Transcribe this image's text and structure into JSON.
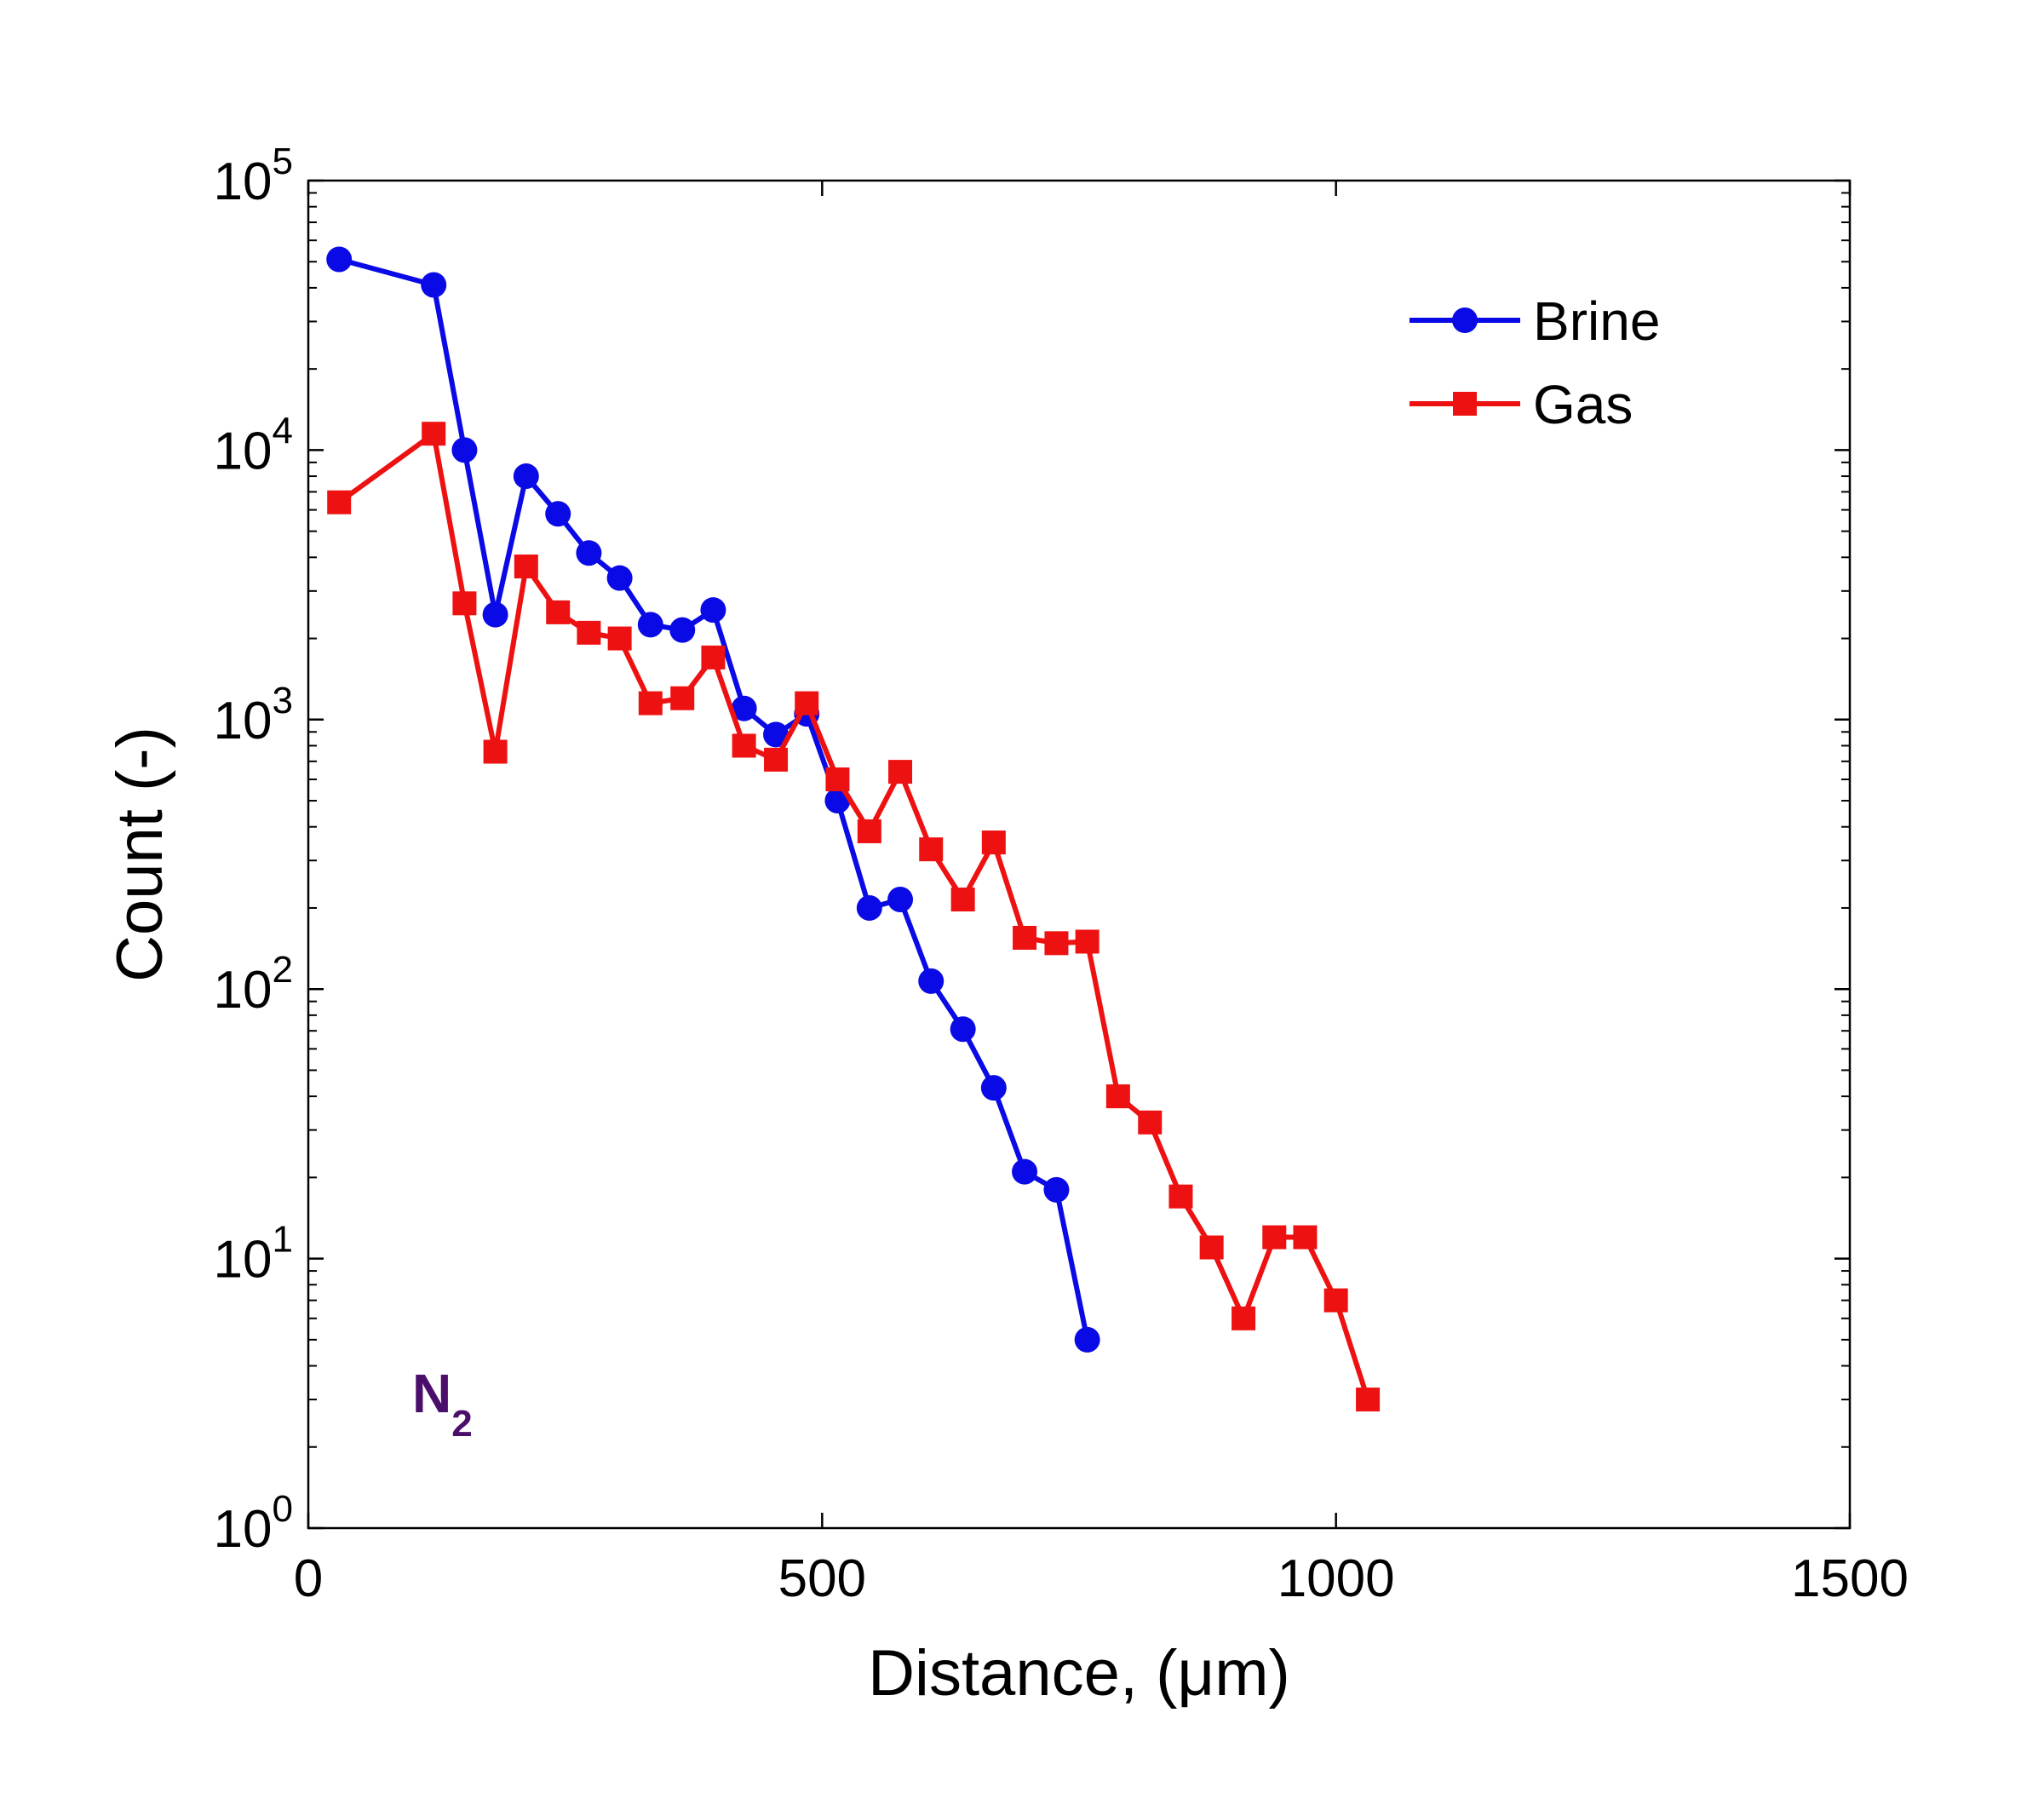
{
  "chart_data": {
    "type": "line",
    "title": "",
    "xlabel": "Distance, (μm)",
    "ylabel": "Count (-)",
    "xlim": [
      0,
      1500
    ],
    "ylim": [
      1,
      100000
    ],
    "yscale": "log",
    "x_ticks": [
      0,
      500,
      1000,
      1500
    ],
    "x_tick_labels": [
      "0",
      "500",
      "1000",
      "1500"
    ],
    "y_ticks": [
      1,
      10,
      100,
      1000,
      10000,
      100000
    ],
    "y_tick_labels": [
      {
        "base": "10",
        "exp": "0"
      },
      {
        "base": "10",
        "exp": "1"
      },
      {
        "base": "10",
        "exp": "2"
      },
      {
        "base": "10",
        "exp": "3"
      },
      {
        "base": "10",
        "exp": "4"
      },
      {
        "base": "10",
        "exp": "5"
      }
    ],
    "grid": false,
    "legend_position": "top-right",
    "annotation": {
      "text": "N",
      "subscript": "2",
      "color": "#4b0f6b"
    },
    "series": [
      {
        "name": "Brine",
        "color": "#0a0ae6",
        "marker": "circle",
        "points": [
          [
            30,
            51000
          ],
          [
            122,
            41000
          ],
          [
            152,
            10000
          ],
          [
            182,
            2450
          ],
          [
            212,
            8000
          ],
          [
            243,
            5800
          ],
          [
            273,
            4150
          ],
          [
            303,
            3350
          ],
          [
            333,
            2250
          ],
          [
            364,
            2150
          ],
          [
            394,
            2550
          ],
          [
            424,
            1100
          ],
          [
            455,
            880
          ],
          [
            485,
            1050
          ],
          [
            515,
            500
          ],
          [
            546,
            200
          ],
          [
            576,
            215
          ],
          [
            606,
            107
          ],
          [
            637,
            71
          ],
          [
            667,
            43
          ],
          [
            697,
            21
          ],
          [
            728,
            18
          ],
          [
            758,
            5
          ]
        ]
      },
      {
        "name": "Gas",
        "color": "#ee1111",
        "marker": "square",
        "points": [
          [
            30,
            6400
          ],
          [
            122,
            11500
          ],
          [
            152,
            2700
          ],
          [
            182,
            760
          ],
          [
            212,
            3700
          ],
          [
            243,
            2500
          ],
          [
            273,
            2100
          ],
          [
            303,
            2000
          ],
          [
            333,
            1150
          ],
          [
            364,
            1200
          ],
          [
            394,
            1700
          ],
          [
            424,
            800
          ],
          [
            455,
            710
          ],
          [
            485,
            1150
          ],
          [
            515,
            600
          ],
          [
            546,
            385
          ],
          [
            576,
            640
          ],
          [
            606,
            330
          ],
          [
            637,
            215
          ],
          [
            667,
            350
          ],
          [
            697,
            155
          ],
          [
            728,
            148
          ],
          [
            758,
            150
          ],
          [
            788,
            40
          ],
          [
            819,
            32
          ],
          [
            849,
            17
          ],
          [
            879,
            11
          ],
          [
            910,
            6
          ],
          [
            940,
            12
          ],
          [
            970,
            12
          ],
          [
            1000,
            7
          ],
          [
            1031,
            3
          ]
        ]
      }
    ]
  }
}
